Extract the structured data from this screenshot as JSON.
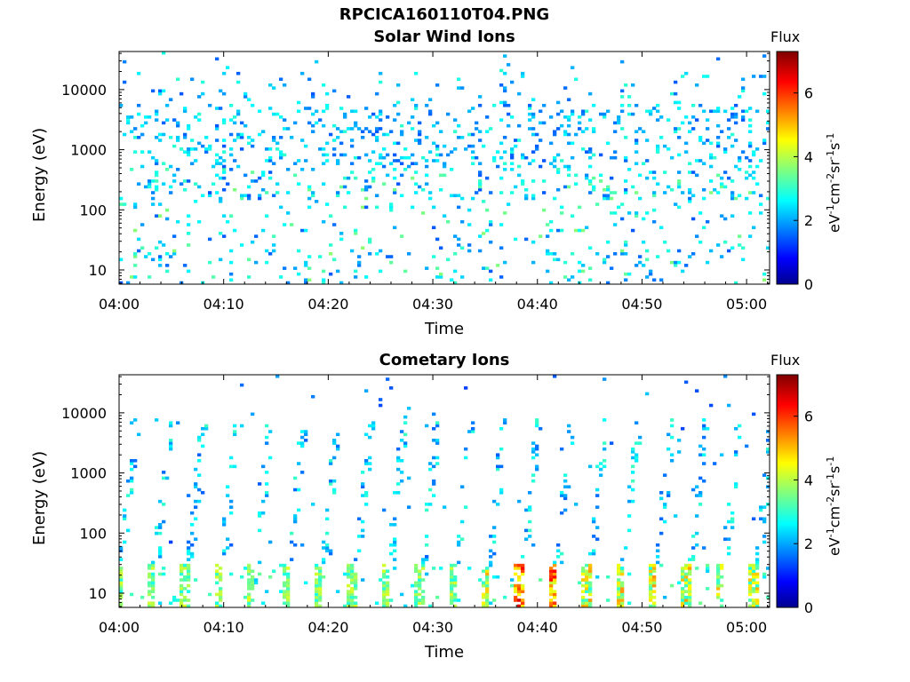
{
  "page_title": "RPCICA160110T04.PNG",
  "colors": {
    "jet": [
      "#00008f",
      "#0000ff",
      "#00ffff",
      "#ffff00",
      "#ff0000",
      "#800000"
    ]
  },
  "chart_data": [
    {
      "type": "heatmap",
      "title": "Solar Wind Ions",
      "xlabel": "Time",
      "ylabel": "Energy (eV)",
      "x_tick_labels": [
        "04:00",
        "04:10",
        "04:20",
        "04:30",
        "04:40",
        "04:50",
        "05:00"
      ],
      "xlim_minutes": [
        0,
        62.2
      ],
      "y_tick_labels": [
        "10",
        "100",
        "1000",
        "10000"
      ],
      "ylim": [
        5.8,
        43000
      ],
      "yscale": "log",
      "colorbar": {
        "label": "Flux",
        "units": "eV-1cm-2sr-1s-1",
        "tick_labels": [
          "0",
          "2",
          "4",
          "6"
        ],
        "range": [
          0,
          7.3
        ]
      },
      "pattern": "scattered low-flux (~1.5-3) counts spread over 10 eV to 30 keV, densest around 200 eV to 5 keV"
    },
    {
      "type": "heatmap",
      "title": "Cometary Ions",
      "xlabel": "Time",
      "ylabel": "Energy (eV)",
      "x_tick_labels": [
        "04:00",
        "04:10",
        "04:20",
        "04:30",
        "04:40",
        "04:50",
        "05:00"
      ],
      "xlim_minutes": [
        0,
        62.2
      ],
      "y_tick_labels": [
        "10",
        "100",
        "1000",
        "10000"
      ],
      "ylim": [
        5.8,
        43000
      ],
      "yscale": "log",
      "colorbar": {
        "label": "Flux",
        "units": "eV-1cm-2sr-1s-1",
        "tick_labels": [
          "0",
          "2",
          "4",
          "6"
        ],
        "range": [
          0,
          7.3
        ]
      },
      "pattern": "periodic bursts roughly every 3.2 minutes: intense (~4-6.5) flux at 6-30 eV with dispersed traces extending up to ~5 keV"
    }
  ]
}
